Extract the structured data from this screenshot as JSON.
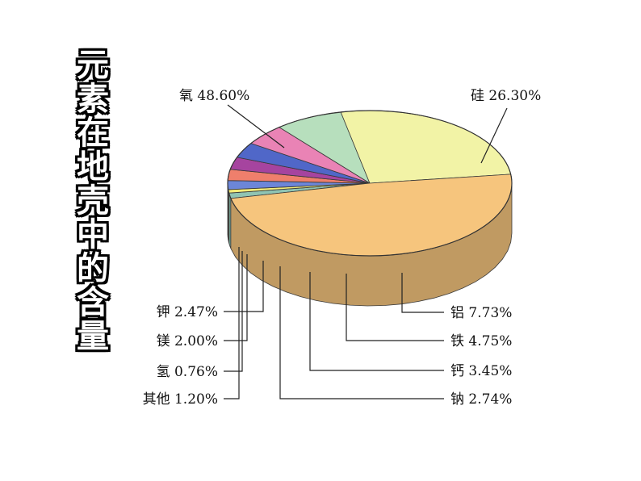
{
  "side_title": "元素在地壳中的含量",
  "chart_data": {
    "type": "pie",
    "title": "元素在地壳中的含量",
    "unit": "%",
    "slices": [
      {
        "label": "氧 48.60%",
        "name": "氧",
        "value": 48.6,
        "color": "#f6c57d"
      },
      {
        "label": "硅 26.30%",
        "name": "硅",
        "value": 26.3,
        "color": "#f2f3a6"
      },
      {
        "label": "铝 7.73%",
        "name": "铝",
        "value": 7.73,
        "color": "#b7dfbd"
      },
      {
        "label": "铁 4.75%",
        "name": "铁",
        "value": 4.75,
        "color": "#e983b5"
      },
      {
        "label": "钙 3.45%",
        "name": "钙",
        "value": 3.45,
        "color": "#5067c8"
      },
      {
        "label": "钠 2.74%",
        "name": "钠",
        "value": 2.74,
        "color": "#a6449f"
      },
      {
        "label": "钾 2.47%",
        "name": "钾",
        "value": 2.47,
        "color": "#ef7f6c"
      },
      {
        "label": "镁 2.00%",
        "name": "镁",
        "value": 2.0,
        "color": "#6c86d8"
      },
      {
        "label": "氢 0.76%",
        "name": "氢",
        "value": 0.76,
        "color": "#f3ec7a"
      },
      {
        "label": "其他 1.20%",
        "name": "其他",
        "value": 1.2,
        "color": "#8fc4b3"
      }
    ]
  }
}
